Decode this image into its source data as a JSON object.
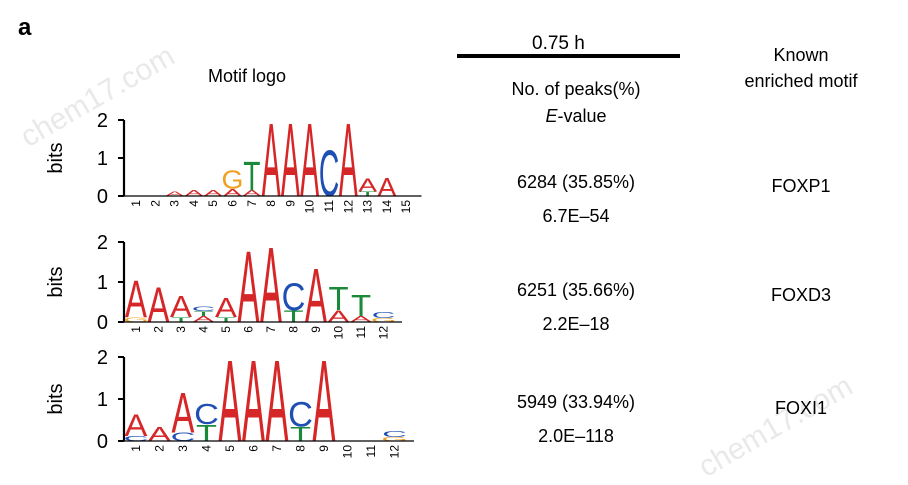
{
  "panel_label": "a",
  "headers": {
    "motif_logo": "Motif logo",
    "time": "0.75 h",
    "peaks_line1": "No. of peaks(%)",
    "peaks_evalue_italic": "E",
    "peaks_evalue_rest": "-value",
    "known_line1": "Known",
    "known_line2": "enriched motif"
  },
  "watermarks": [
    "chem17.com",
    "chem17.com"
  ],
  "rows": [
    {
      "peaks": "6284 (35.85%)",
      "evalue": "6.7E–54",
      "motif": "FOXP1",
      "axis_label": "bits",
      "ticks": [
        "2",
        "1",
        "0"
      ],
      "positions": [
        "1",
        "2",
        "3",
        "4",
        "5",
        "6",
        "7",
        "8",
        "9",
        "10",
        "11",
        "12",
        "13",
        "14",
        "15"
      ],
      "letters": [
        [],
        [],
        [
          {
            "l": "A",
            "h": 0.12
          }
        ],
        [
          {
            "l": "A",
            "h": 0.16
          }
        ],
        [
          {
            "l": "A",
            "h": 0.16
          }
        ],
        [
          {
            "l": "A",
            "h": 0.2
          },
          {
            "l": "G",
            "h": 0.5
          }
        ],
        [
          {
            "l": "A",
            "h": 0.15
          },
          {
            "l": "T",
            "h": 0.8
          }
        ],
        [
          {
            "l": "A",
            "h": 2.0
          }
        ],
        [
          {
            "l": "A",
            "h": 2.0
          }
        ],
        [
          {
            "l": "A",
            "h": 2.0
          }
        ],
        [
          {
            "l": "C",
            "h": 1.25
          }
        ],
        [
          {
            "l": "A",
            "h": 2.0
          }
        ],
        [
          {
            "l": "T",
            "h": 0.12
          },
          {
            "l": "A",
            "h": 0.35
          }
        ],
        [
          {
            "l": "A",
            "h": 0.5
          }
        ],
        []
      ]
    },
    {
      "peaks": "6251 (35.66%)",
      "evalue": "2.2E–18",
      "motif": "FOXD3",
      "axis_label": "bits",
      "ticks": [
        "2",
        "1",
        "0"
      ],
      "positions": [
        "1",
        "2",
        "3",
        "4",
        "5",
        "6",
        "7",
        "8",
        "9",
        "10",
        "11",
        "12"
      ],
      "letters": [
        [
          {
            "l": "G",
            "h": 0.12
          },
          {
            "l": "A",
            "h": 0.95
          }
        ],
        [
          {
            "l": "A",
            "h": 0.9
          }
        ],
        [
          {
            "l": "T",
            "h": 0.12
          },
          {
            "l": "A",
            "h": 0.55
          }
        ],
        [
          {
            "l": "A",
            "h": 0.15
          },
          {
            "l": "T",
            "h": 0.12
          },
          {
            "l": "C",
            "h": 0.12
          }
        ],
        [
          {
            "l": "T",
            "h": 0.12
          },
          {
            "l": "A",
            "h": 0.5
          }
        ],
        [
          {
            "l": "A",
            "h": 1.85
          }
        ],
        [
          {
            "l": "A",
            "h": 1.95
          }
        ],
        [
          {
            "l": "T",
            "h": 0.3
          },
          {
            "l": "C",
            "h": 0.7
          }
        ],
        [
          {
            "l": "A",
            "h": 1.4
          }
        ],
        [
          {
            "l": "A",
            "h": 0.3
          },
          {
            "l": "T",
            "h": 0.6
          }
        ],
        [
          {
            "l": "A",
            "h": 0.15
          },
          {
            "l": "T",
            "h": 0.55
          }
        ],
        [
          {
            "l": "G",
            "h": 0.1
          },
          {
            "l": "C",
            "h": 0.15
          }
        ]
      ]
    },
    {
      "peaks": "5949 (33.94%)",
      "evalue": "2.0E–118",
      "motif": "FOXI1",
      "axis_label": "bits",
      "ticks": [
        "2",
        "1",
        "0"
      ],
      "positions": [
        "1",
        "2",
        "3",
        "4",
        "5",
        "6",
        "7",
        "8",
        "9",
        "10",
        "11",
        "12"
      ],
      "letters": [
        [
          {
            "l": "C",
            "h": 0.12
          },
          {
            "l": "A",
            "h": 0.55
          }
        ],
        [
          {
            "l": "A",
            "h": 0.35
          }
        ],
        [
          {
            "l": "C",
            "h": 0.2
          },
          {
            "l": "A",
            "h": 1.0
          }
        ],
        [
          {
            "l": "T",
            "h": 0.4
          },
          {
            "l": "C",
            "h": 0.5
          }
        ],
        [
          {
            "l": "A",
            "h": 2.0
          }
        ],
        [
          {
            "l": "A",
            "h": 2.0
          }
        ],
        [
          {
            "l": "A",
            "h": 2.0
          }
        ],
        [
          {
            "l": "T",
            "h": 0.35
          },
          {
            "l": "C",
            "h": 0.6
          }
        ],
        [
          {
            "l": "A",
            "h": 2.0
          }
        ],
        [],
        [],
        [
          {
            "l": "G",
            "h": 0.1
          },
          {
            "l": "C",
            "h": 0.15
          }
        ]
      ]
    }
  ],
  "colors": {
    "A": "#d62728",
    "C": "#1f4fb4",
    "G": "#f0a020",
    "T": "#1a8a3a"
  }
}
